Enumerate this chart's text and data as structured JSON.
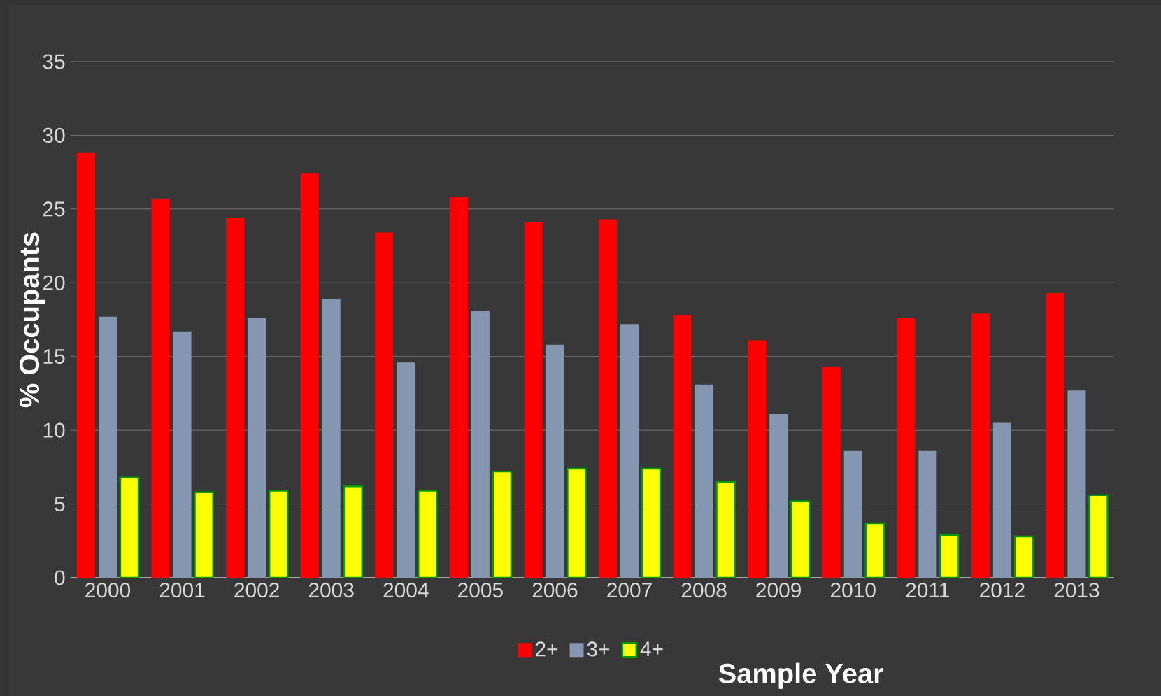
{
  "chart_data": {
    "type": "bar",
    "xlabel": "Sample Year",
    "ylabel": "% Occupants",
    "categories": [
      "2000",
      "2001",
      "2002",
      "2003",
      "2004",
      "2005",
      "2006",
      "2007",
      "2008",
      "2009",
      "2010",
      "2011",
      "2012",
      "2013"
    ],
    "series": [
      {
        "name": "2+",
        "color": "#ff0000",
        "values": [
          28.8,
          25.7,
          24.4,
          27.4,
          23.4,
          25.8,
          24.1,
          24.3,
          17.8,
          16.1,
          14.3,
          17.6,
          17.9,
          19.3
        ]
      },
      {
        "name": "3+",
        "color": "#8496b0",
        "values": [
          17.7,
          16.7,
          17.6,
          18.9,
          14.6,
          18.1,
          15.8,
          17.2,
          13.1,
          11.1,
          8.6,
          8.6,
          10.5,
          12.7
        ]
      },
      {
        "name": "4+",
        "color": "#ffff00",
        "values": [
          6.8,
          5.8,
          5.9,
          6.2,
          5.9,
          7.2,
          7.4,
          7.4,
          6.5,
          5.2,
          3.7,
          2.9,
          2.8,
          5.6
        ]
      }
    ],
    "ylim": [
      0,
      35
    ],
    "yticks": [
      0,
      5,
      10,
      15,
      20,
      25,
      30,
      35
    ],
    "grid": "y",
    "legend": "bottom"
  }
}
